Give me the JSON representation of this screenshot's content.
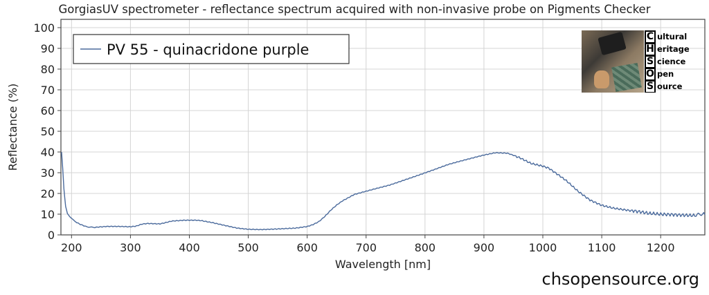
{
  "chart_data": {
    "type": "line",
    "title": "GorgiasUV spectrometer - reflectance spectrum acquired with non-invasive probe on Pigments Checker",
    "xlabel": "Wavelength [nm]",
    "ylabel": "Reflectance (%)",
    "xlim": [
      182,
      1275
    ],
    "ylim": [
      0,
      104
    ],
    "x_ticks": [
      200,
      300,
      400,
      500,
      600,
      700,
      800,
      900,
      1000,
      1100,
      1200
    ],
    "y_ticks": [
      0,
      10,
      20,
      30,
      40,
      50,
      60,
      70,
      80,
      90,
      100
    ],
    "grid": true,
    "legend_position": "top-left",
    "series": [
      {
        "name": "PV 55 - quinacridone purple",
        "color": "#4a6a9c",
        "points": [
          [
            183,
            40
          ],
          [
            185,
            32
          ],
          [
            187,
            22
          ],
          [
            190,
            14
          ],
          [
            193,
            10
          ],
          [
            198,
            8.5
          ],
          [
            205,
            6.5
          ],
          [
            215,
            5
          ],
          [
            225,
            4
          ],
          [
            240,
            3.6
          ],
          [
            260,
            4
          ],
          [
            280,
            4
          ],
          [
            300,
            3.9
          ],
          [
            310,
            4.3
          ],
          [
            320,
            5.3
          ],
          [
            330,
            5.6
          ],
          [
            350,
            5.4
          ],
          [
            360,
            6
          ],
          [
            370,
            6.7
          ],
          [
            390,
            7
          ],
          [
            410,
            7
          ],
          [
            420,
            6.8
          ],
          [
            440,
            5.8
          ],
          [
            460,
            4.6
          ],
          [
            480,
            3.4
          ],
          [
            500,
            2.8
          ],
          [
            520,
            2.6
          ],
          [
            540,
            2.7
          ],
          [
            560,
            2.9
          ],
          [
            580,
            3.2
          ],
          [
            600,
            4
          ],
          [
            610,
            5
          ],
          [
            620,
            6.5
          ],
          [
            630,
            9
          ],
          [
            640,
            12
          ],
          [
            650,
            14.5
          ],
          [
            660,
            16.5
          ],
          [
            670,
            18
          ],
          [
            680,
            19.5
          ],
          [
            700,
            21
          ],
          [
            720,
            22.5
          ],
          [
            740,
            24
          ],
          [
            760,
            26
          ],
          [
            780,
            28
          ],
          [
            800,
            30
          ],
          [
            820,
            32
          ],
          [
            840,
            34
          ],
          [
            860,
            35.5
          ],
          [
            880,
            37
          ],
          [
            900,
            38.5
          ],
          [
            920,
            39.7
          ],
          [
            940,
            39.5
          ],
          [
            960,
            37.5
          ],
          [
            980,
            34.5
          ],
          [
            1000,
            33
          ],
          [
            1010,
            32
          ],
          [
            1020,
            30
          ],
          [
            1040,
            26
          ],
          [
            1060,
            21
          ],
          [
            1080,
            17
          ],
          [
            1100,
            14.5
          ],
          [
            1120,
            13
          ],
          [
            1140,
            12
          ],
          [
            1160,
            11
          ],
          [
            1180,
            10
          ],
          [
            1200,
            9.8
          ],
          [
            1220,
            10
          ],
          [
            1240,
            9.9
          ],
          [
            1260,
            9.7
          ],
          [
            1275,
            9.8
          ]
        ]
      }
    ]
  },
  "logo": {
    "letters": [
      "C",
      "H",
      "S",
      "O",
      "S"
    ],
    "words": [
      "ultural",
      "eritage",
      "cience",
      "pen",
      "ource"
    ]
  },
  "footer": {
    "website": "chsopensource.org"
  }
}
